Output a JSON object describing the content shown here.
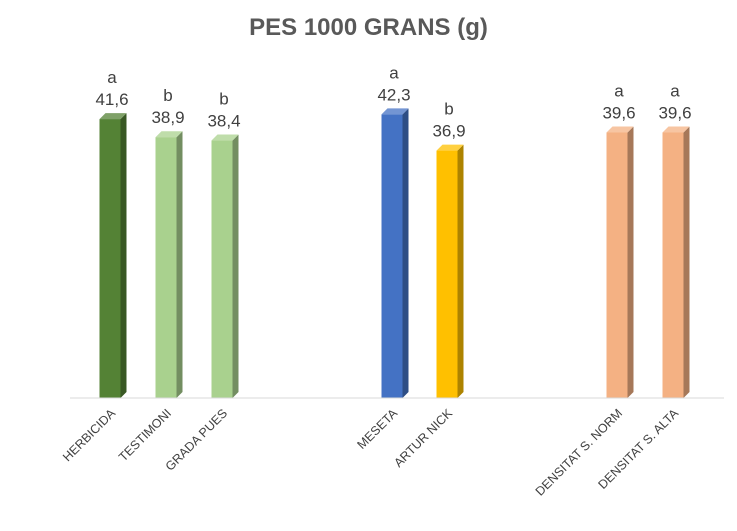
{
  "chart_data": {
    "type": "bar",
    "title": "PES 1000 GRANS (g)",
    "categories": [
      "HERBICIDA",
      "TESTIMONI",
      "GRADA PUES",
      "MESETA",
      "ARTUR NICK",
      "DENSITAT S. NORM",
      "DENSITAT S. ALTA"
    ],
    "values": [
      41.6,
      38.9,
      38.4,
      42.3,
      36.9,
      39.6,
      39.6
    ],
    "value_labels": [
      "41,6",
      "38,9",
      "38,4",
      "42,3",
      "36,9",
      "39,6",
      "39,6"
    ],
    "significance": [
      "a",
      "b",
      "b",
      "a",
      "b",
      "a",
      "a"
    ],
    "groups": [
      [
        0,
        1,
        2
      ],
      [
        3,
        4
      ],
      [
        5,
        6
      ]
    ],
    "colors": [
      "#548235",
      "#a9d18e",
      "#a9d18e",
      "#4472c4",
      "#ffc000",
      "#f4b183",
      "#f4b183"
    ],
    "ylim": [
      0,
      44
    ],
    "grid": false,
    "legend": "none"
  }
}
